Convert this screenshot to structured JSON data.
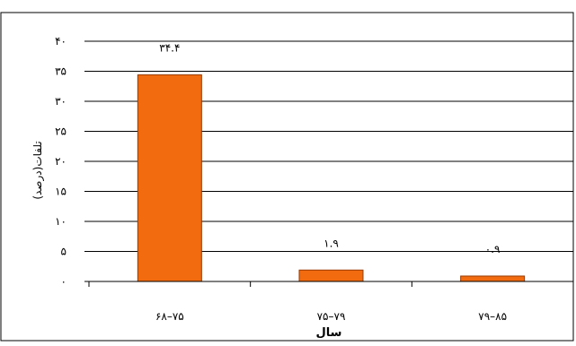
{
  "chart_data": {
    "type": "bar",
    "categories": [
      "۶۸–۷۵",
      "۷۵–۷۹",
      "۷۹–۸۵"
    ],
    "values": [
      34.4,
      1.9,
      0.9
    ],
    "data_labels": [
      "۳۴.۴",
      "۱.۹",
      "۰.۹"
    ],
    "xlabel": "سال",
    "ylabel": "تلفات(درصد)",
    "ylim": [
      0,
      40
    ],
    "yticks": [
      0,
      5,
      10,
      15,
      20,
      25,
      30,
      35,
      40
    ],
    "ytick_labels": [
      "۰",
      "۵",
      "۱۰",
      "۱۵",
      "۲۰",
      "۲۵",
      "۳۰",
      "۳۵",
      "۴۰"
    ],
    "grid": true,
    "legend": false,
    "bar_color": "#F26B0F",
    "bar_edge_color": "#9A3A00"
  }
}
